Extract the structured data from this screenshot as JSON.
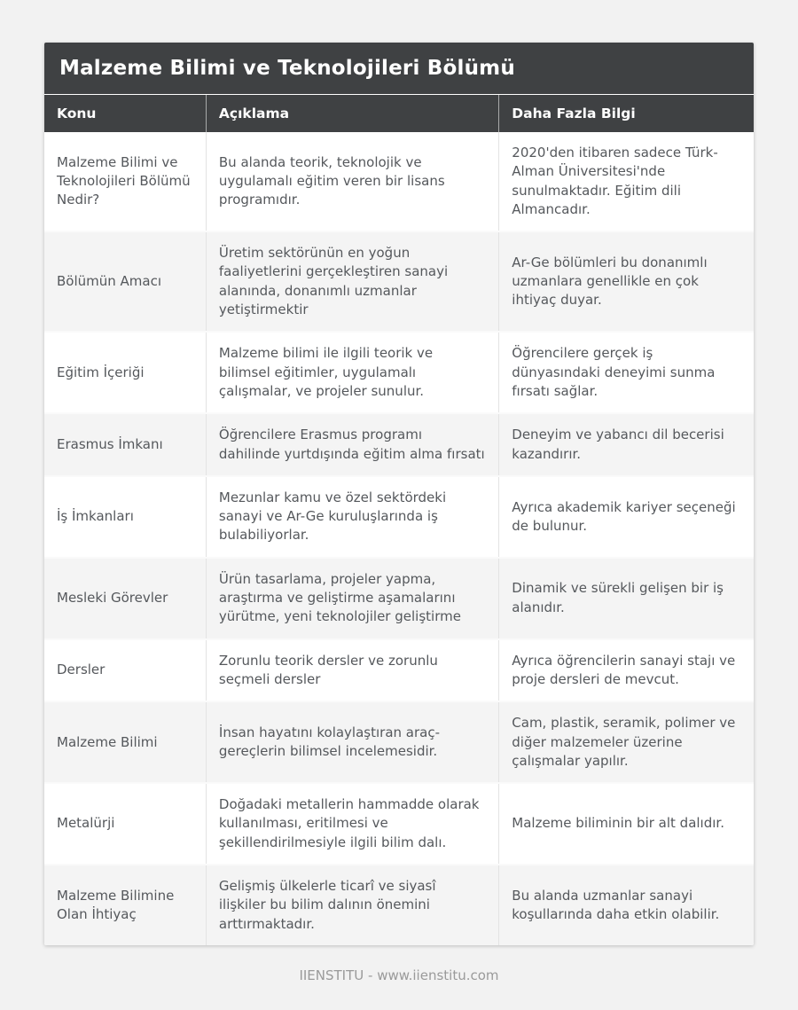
{
  "table": {
    "title": "Malzeme Bilimi ve Teknolojileri Bölümü",
    "columns": [
      "Konu",
      "Açıklama",
      "Daha Fazla Bilgi"
    ],
    "rows": [
      {
        "konu": "Malzeme Bilimi ve Teknolojileri Bölümü Nedir?",
        "aciklama": "Bu alanda teorik, teknolojik ve uygulamalı eğitim veren bir lisans programıdır.",
        "daha_fazla": "2020'den itibaren sadece Türk-Alman Üniversitesi'nde sunulmaktadır. Eğitim dili Almancadır."
      },
      {
        "konu": "Bölümün Amacı",
        "aciklama": "Üretim sektörünün en yoğun faaliyetlerini gerçekleştiren sanayi alanında, donanımlı uzmanlar yetiştirmektir",
        "daha_fazla": "Ar-Ge bölümleri bu donanımlı uzmanlara genellikle en çok ihtiyaç duyar."
      },
      {
        "konu": "Eğitim İçeriği",
        "aciklama": "Malzeme bilimi ile ilgili teorik ve bilimsel eğitimler, uygulamalı çalışmalar, ve projeler sunulur.",
        "daha_fazla": "Öğrencilere gerçek iş dünyasındaki deneyimi sunma fırsatı sağlar."
      },
      {
        "konu": "Erasmus İmkanı",
        "aciklama": "Öğrencilere Erasmus programı dahilinde yurtdışında eğitim alma fırsatı",
        "daha_fazla": "Deneyim ve yabancı dil becerisi kazandırır."
      },
      {
        "konu": "İş İmkanları",
        "aciklama": "Mezunlar kamu ve özel sektördeki sanayi ve Ar-Ge kuruluşlarında iş bulabiliyorlar.",
        "daha_fazla": "Ayrıca akademik kariyer seçeneği de bulunur."
      },
      {
        "konu": "Mesleki Görevler",
        "aciklama": "Ürün tasarlama, projeler yapma, araştırma ve geliştirme aşamalarını yürütme, yeni teknolojiler geliştirme",
        "daha_fazla": "Dinamik ve sürekli gelişen bir iş alanıdır."
      },
      {
        "konu": "Dersler",
        "aciklama": "Zorunlu teorik dersler ve zorunlu seçmeli dersler",
        "daha_fazla": "Ayrıca öğrencilerin sanayi stajı ve proje dersleri de mevcut."
      },
      {
        "konu": "Malzeme Bilimi",
        "aciklama": "İnsan hayatını kolaylaştıran araç-gereçlerin bilimsel incelemesidir.",
        "daha_fazla": "Cam, plastik, seramik, polimer ve diğer malzemeler üzerine çalışmalar yapılır."
      },
      {
        "konu": "Metalürji",
        "aciklama": "Doğadaki metallerin hammadde olarak kullanılması, eritilmesi ve şekillendirilmesiyle ilgili bilim dalı.",
        "daha_fazla": "Malzeme biliminin bir alt dalıdır."
      },
      {
        "konu": "Malzeme Bilimine Olan İhtiyaç",
        "aciklama": "Gelişmiş ülkelerle ticarî ve siyasî ilişkiler bu bilim dalının önemini arttırmaktadır.",
        "daha_fazla": "Bu alanda uzmanlar sanayi koşullarında daha etkin olabilir."
      }
    ]
  },
  "footer": {
    "credit": "IIENSTITU - www.iienstitu.com"
  },
  "colors": {
    "header_bg": "#3f4143",
    "header_text": "#ffffff",
    "page_bg": "#f2f2f2",
    "row_bg": "#ffffff",
    "row_alt_bg": "#f4f4f4",
    "body_text": "#55585c",
    "footer_text": "#9a9a9a"
  }
}
